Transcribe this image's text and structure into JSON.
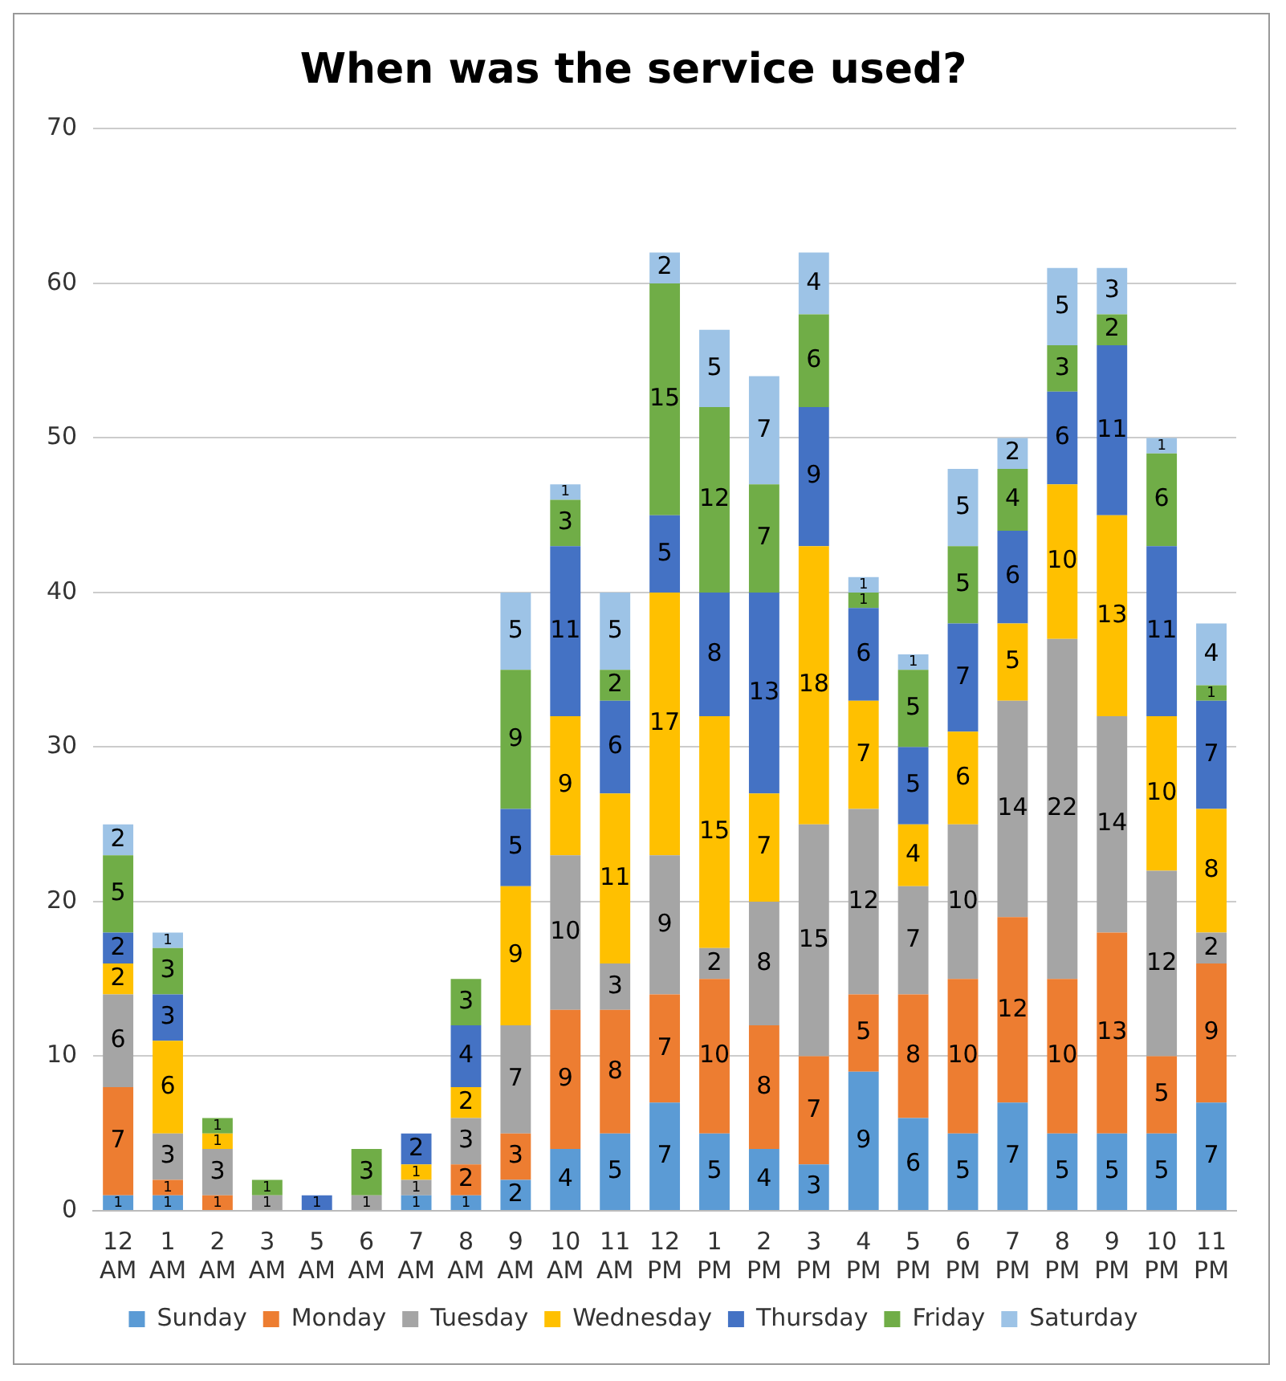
{
  "chart_data": {
    "type": "bar",
    "title": "When was the service used?",
    "stacked": true,
    "data_labels": true,
    "grid": "y",
    "legend": "bottom",
    "categories": [
      "12 AM",
      "1 AM",
      "2 AM",
      "3 AM",
      "5 AM",
      "6 AM",
      "7 AM",
      "8 AM",
      "9 AM",
      "10 AM",
      "11 AM",
      "12 PM",
      "1 PM",
      "2 PM",
      "3 PM",
      "4 PM",
      "5 PM",
      "6 PM",
      "7 PM",
      "8 PM",
      "9 PM",
      "10 PM",
      "11 PM"
    ],
    "ylim": [
      0,
      70
    ],
    "yticks": [
      0,
      10,
      20,
      30,
      40,
      50,
      60,
      70
    ],
    "series": [
      {
        "name": "Sunday",
        "color": "#5b9bd5",
        "values": [
          1,
          1,
          null,
          null,
          null,
          null,
          1,
          1,
          2,
          4,
          5,
          7,
          5,
          4,
          3,
          9,
          6,
          5,
          7,
          5,
          5,
          5,
          7
        ]
      },
      {
        "name": "Monday",
        "color": "#ed7d31",
        "values": [
          7,
          1,
          1,
          null,
          null,
          null,
          null,
          2,
          3,
          9,
          8,
          7,
          10,
          8,
          7,
          5,
          8,
          10,
          12,
          10,
          13,
          5,
          9
        ]
      },
      {
        "name": "Tuesday",
        "color": "#a5a5a5",
        "values": [
          6,
          3,
          3,
          1,
          null,
          1,
          1,
          3,
          7,
          10,
          3,
          9,
          2,
          8,
          15,
          12,
          7,
          10,
          14,
          22,
          14,
          12,
          2
        ]
      },
      {
        "name": "Wednesday",
        "color": "#ffc000",
        "values": [
          2,
          6,
          1,
          null,
          null,
          null,
          1,
          2,
          9,
          9,
          11,
          17,
          15,
          7,
          18,
          7,
          4,
          6,
          5,
          10,
          13,
          10,
          8
        ]
      },
      {
        "name": "Thursday",
        "color": "#4472c4",
        "values": [
          2,
          3,
          null,
          null,
          1,
          null,
          2,
          4,
          5,
          11,
          6,
          5,
          8,
          13,
          9,
          6,
          5,
          7,
          6,
          6,
          11,
          11,
          7
        ]
      },
      {
        "name": "Friday",
        "color": "#70ad47",
        "values": [
          5,
          3,
          1,
          1,
          null,
          3,
          null,
          3,
          9,
          3,
          2,
          15,
          12,
          7,
          6,
          1,
          5,
          5,
          4,
          3,
          2,
          6,
          1
        ]
      },
      {
        "name": "Saturday",
        "color": "#9dc3e6",
        "values": [
          2,
          1,
          null,
          null,
          null,
          null,
          null,
          null,
          5,
          1,
          5,
          2,
          5,
          7,
          4,
          1,
          1,
          5,
          2,
          5,
          3,
          1,
          4
        ]
      }
    ]
  }
}
